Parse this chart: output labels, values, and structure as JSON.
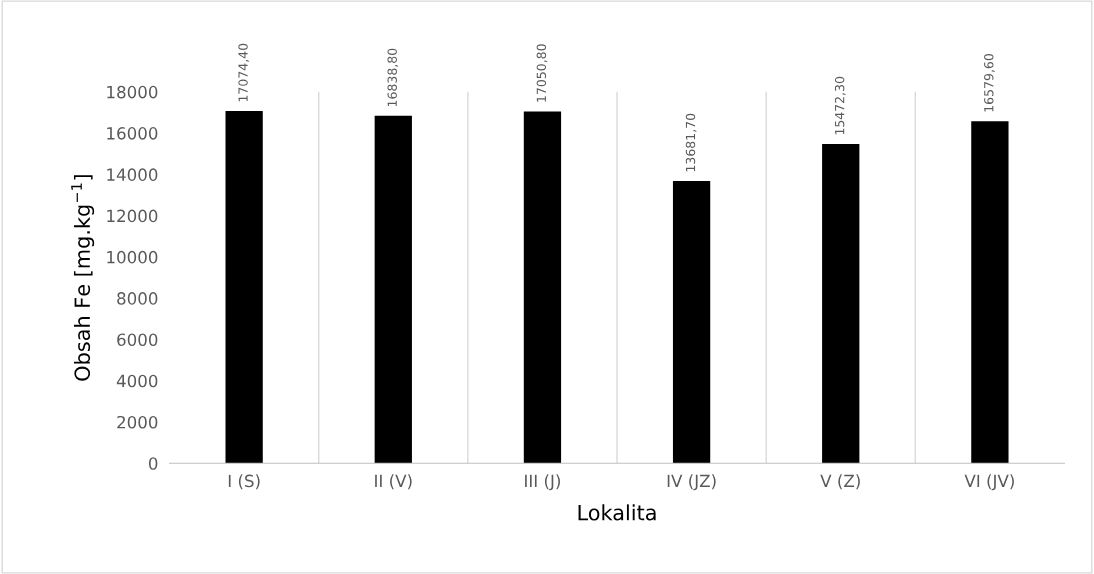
{
  "chart_data": {
    "type": "bar",
    "xlabel": "Lokalita",
    "ylabel": "Obsah Fe [mg.kg$^{−1}$]",
    "categories": [
      "I (S)",
      "II (V)",
      "III (J)",
      "IV (JZ)",
      "V (Z)",
      "VI (JV)"
    ],
    "values": [
      17074.4,
      16838.8,
      17050.8,
      13681.7,
      15472.3,
      16579.6
    ],
    "value_labels": [
      "17074,40",
      "16838,80",
      "17050,80",
      "13681,70",
      "15472,30",
      "16579,60"
    ],
    "color": "#000000",
    "ylim": [
      0,
      18000
    ],
    "yticks": [
      0,
      2000,
      4000,
      6000,
      8000,
      10000,
      12000,
      14000,
      16000,
      18000
    ],
    "grid": "x",
    "legend": false
  }
}
